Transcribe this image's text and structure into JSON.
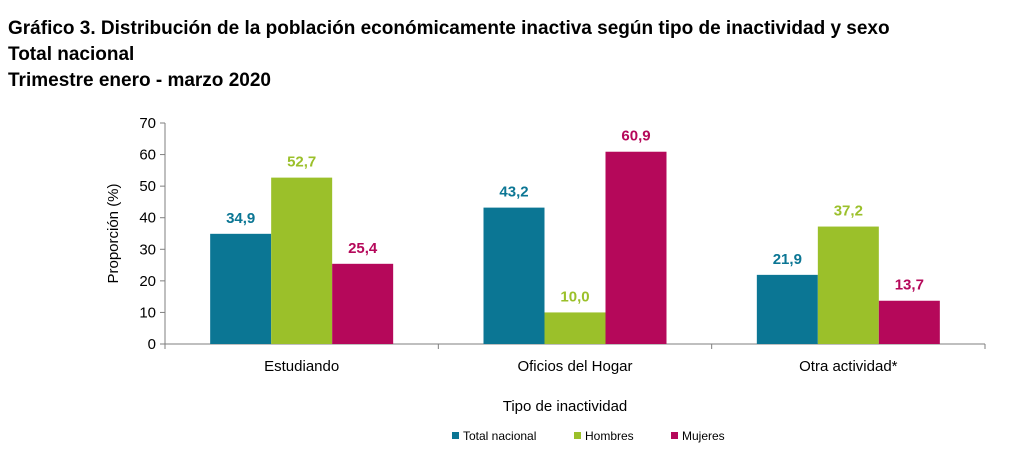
{
  "header": {
    "title_line1": "Gráfico 3. Distribución de la población económicamente inactiva según tipo de inactividad y sexo",
    "title_line2": "Total nacional",
    "title_line3": "Trimestre  enero - marzo 2020"
  },
  "chart_data": {
    "type": "bar",
    "xlabel": "Tipo de inactividad",
    "ylabel": "Proporción (%)",
    "ylim": [
      0,
      70
    ],
    "yticks": [
      "0",
      "10",
      "20",
      "30",
      "40",
      "50",
      "60",
      "70"
    ],
    "categories": [
      "Estudiando",
      "Oficios del Hogar",
      "Otra actividad*"
    ],
    "series": [
      {
        "name": "Total nacional",
        "color": "#0b7694",
        "values": [
          34.9,
          43.2,
          21.9
        ],
        "labels": [
          "34,9",
          "43,2",
          "21,9"
        ]
      },
      {
        "name": "Hombres",
        "color": "#9bc02a",
        "values": [
          52.7,
          10.0,
          37.2
        ],
        "labels": [
          "52,7",
          "10,0",
          "37,2"
        ]
      },
      {
        "name": "Mujeres",
        "color": "#b5085a",
        "values": [
          25.4,
          60.9,
          13.7
        ],
        "labels": [
          "25,4",
          "60,9",
          "13,7"
        ]
      }
    ],
    "legend_position": "bottom",
    "grid": false
  }
}
